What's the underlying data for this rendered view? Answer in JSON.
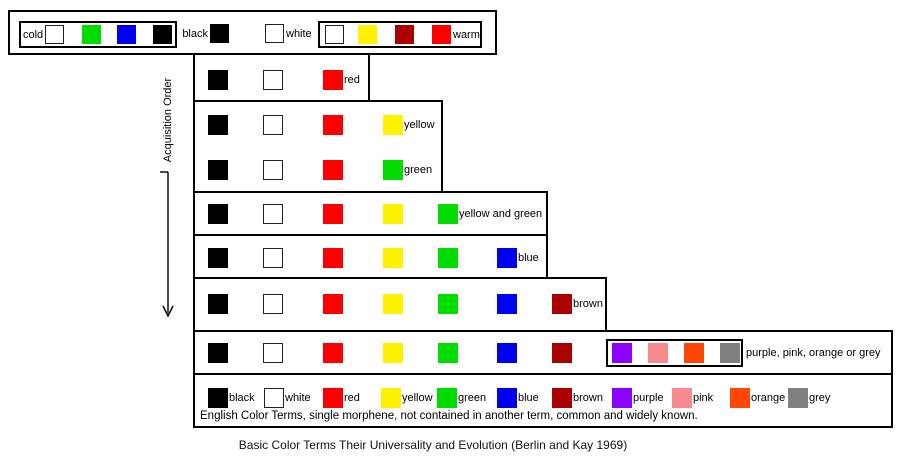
{
  "caption": "Basic Color Terms Their Universality and Evolution (Berlin and Kay 1969)",
  "acquisition_label": "Acquisition Order",
  "palette": {
    "black": "#000000",
    "white": "#ffffff",
    "red": "#fe0000",
    "yellow": "#fff200",
    "green": "#00dc00",
    "blue": "#0000f0",
    "brown": "#aa0000",
    "purple": "#8b00ff",
    "pink": "#f8898f",
    "orange": "#ff4703",
    "grey": "#808080"
  },
  "stage_one": {
    "cold": {
      "label": "cold",
      "swatches": [
        "white",
        "green",
        "blue",
        "black"
      ]
    },
    "black": {
      "label": "black",
      "swatch": "black"
    },
    "white": {
      "label": "white",
      "swatch": "white"
    },
    "warm": {
      "label": "warm",
      "swatches": [
        "white",
        "yellow",
        "brown",
        "red"
      ]
    }
  },
  "stages": [
    {
      "id": "red",
      "rows": [
        {
          "swatches": [
            "black",
            "white",
            "red"
          ],
          "label": "red"
        }
      ]
    },
    {
      "id": "yellow-or-green",
      "rows": [
        {
          "swatches": [
            "black",
            "white",
            "red",
            "yellow"
          ],
          "label": "yellow"
        },
        {
          "swatches": [
            "black",
            "white",
            "red",
            "green"
          ],
          "label": "green"
        }
      ]
    },
    {
      "id": "yellow-and-green",
      "rows": [
        {
          "swatches": [
            "black",
            "white",
            "red",
            "yellow",
            "green"
          ],
          "label": "yellow and green"
        }
      ]
    },
    {
      "id": "blue",
      "rows": [
        {
          "swatches": [
            "black",
            "white",
            "red",
            "yellow",
            "green",
            "blue"
          ],
          "label": "blue"
        }
      ]
    },
    {
      "id": "brown",
      "rows": [
        {
          "swatches": [
            "black",
            "white",
            "red",
            "yellow",
            "green",
            "blue",
            "brown"
          ],
          "label": "brown"
        }
      ]
    },
    {
      "id": "purple-pink-orange-grey",
      "rows": [
        {
          "swatches": [
            "black",
            "white",
            "red",
            "yellow",
            "green",
            "blue",
            "brown"
          ],
          "group": [
            "purple",
            "pink",
            "orange",
            "grey"
          ],
          "label": "purple, pink, orange or grey"
        }
      ]
    }
  ],
  "legend": {
    "items": [
      {
        "color": "black",
        "label": "black"
      },
      {
        "color": "white",
        "label": "white"
      },
      {
        "color": "red",
        "label": "red"
      },
      {
        "color": "yellow",
        "label": "yellow"
      },
      {
        "color": "green",
        "label": "green"
      },
      {
        "color": "blue",
        "label": "blue"
      },
      {
        "color": "brown",
        "label": "brown"
      },
      {
        "color": "purple",
        "label": "purple"
      },
      {
        "color": "pink",
        "label": "pink"
      },
      {
        "color": "orange",
        "label": "orange"
      },
      {
        "color": "grey",
        "label": "grey"
      }
    ],
    "footnote": "English Color Terms, single morphene, not contained in another term, common and widely known."
  }
}
